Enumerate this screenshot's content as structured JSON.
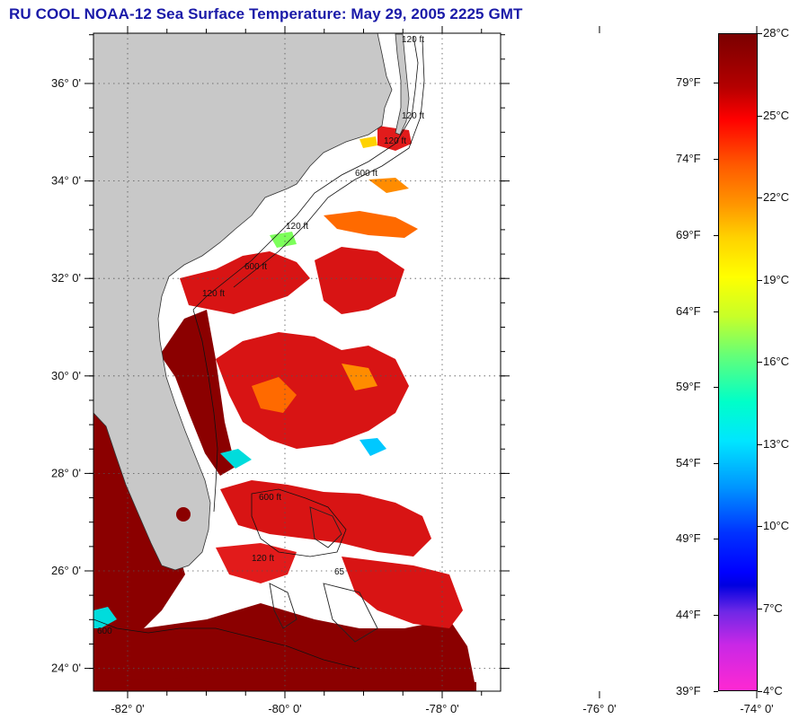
{
  "title": "RU COOL  NOAA-12  Sea Surface Temperature:  May 29, 2005 2225 GMT",
  "colors": {
    "title": "#1a1aa8",
    "land": "#c8c8c8",
    "no_data": "#ffffff",
    "sst_hot": "#8b0000",
    "sst_warm": "#e21b1b",
    "sst_mid": "#ff7a00",
    "sst_cool": "#00e0e0"
  },
  "map": {
    "lat_labels": [
      {
        "lat": 36,
        "label": "36° 0'"
      },
      {
        "lat": 34,
        "label": "34° 0'"
      },
      {
        "lat": 32,
        "label": "32° 0'"
      },
      {
        "lat": 30,
        "label": "30° 0'"
      },
      {
        "lat": 28,
        "label": "28° 0'"
      },
      {
        "lat": 26,
        "label": "26° 0'"
      },
      {
        "lat": 24,
        "label": "24° 0'"
      }
    ],
    "lon_labels": [
      {
        "lon": -82,
        "label": "-82° 0'"
      },
      {
        "lon": -80,
        "label": "-80° 0'"
      },
      {
        "lon": -78,
        "label": "-78° 0'"
      },
      {
        "lon": -76,
        "label": "-76° 0'"
      },
      {
        "lon": -74,
        "label": "-74° 0'"
      }
    ],
    "contour_labels": [
      "120 ft",
      "120 ft",
      "120 ft",
      "600 ft",
      "120 ft",
      "600 ft",
      "120 ft",
      "600 ft",
      "120 ft",
      "65",
      "600"
    ]
  },
  "colorbar": {
    "celsius_labels": [
      "28°C",
      "25°C",
      "22°C",
      "19°C",
      "16°C",
      "13°C",
      "10°C",
      "7°C",
      "4°C"
    ],
    "fahrenheit_labels": [
      "79°F",
      "74°F",
      "69°F",
      "64°F",
      "59°F",
      "54°F",
      "49°F",
      "44°F",
      "39°F"
    ]
  }
}
